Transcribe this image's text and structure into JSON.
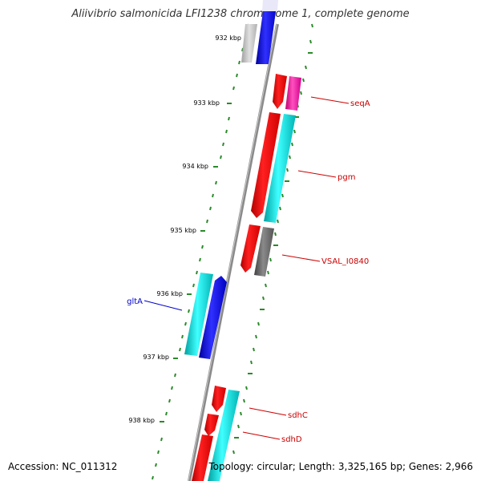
{
  "title": "Aliivibrio salmonicida LFI1238 chromosome 1, complete genome",
  "footer": {
    "accession": "Accession: NC_011312",
    "info": "Topology: circular; Length: 3,325,165 bp; Genes: 2,966"
  },
  "kbp_ticks": [
    "932 kbp",
    "933 kbp",
    "934 kbp",
    "935 kbp",
    "936 kbp",
    "937 kbp",
    "938 kbp"
  ],
  "gene_labels": {
    "seqA": "seqA",
    "pgm": "pgm",
    "vsal": "VSAL_I0840",
    "gltA": "gltA",
    "sdhC": "sdhC",
    "sdhD": "sdhD"
  },
  "colors": {
    "backbone": "#8a8a8a",
    "tick": "#2a8a2a",
    "red_feature": "#ff0000",
    "cyan_feature": "#00c8c8",
    "blue_feature": "#0000ff",
    "magenta_feature": "#ff2aa0",
    "gray_feature": "#6e6e6e",
    "label_red": "#cc0000",
    "label_blue": "#0000cc"
  }
}
